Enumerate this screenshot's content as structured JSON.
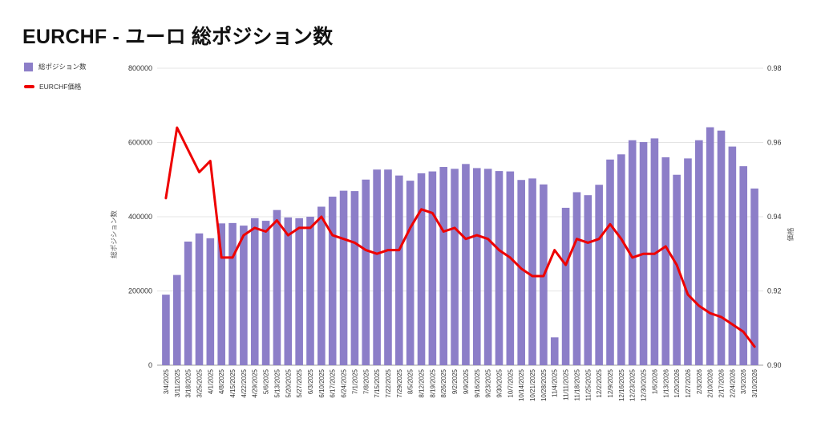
{
  "title": "EURCHF - ユーロ 総ポジション数",
  "legend": [
    {
      "label": "総ポジション数",
      "type": "bar",
      "color": "#8c7ec8"
    },
    {
      "label": "EURCHF価格",
      "type": "line",
      "color": "#ee0000"
    }
  ],
  "colors": {
    "bar": "#8c7ec8",
    "line": "#ee0000",
    "grid": "#e4e4e4",
    "axis_line": "#9e9e9e",
    "tick_text": "#333333",
    "axis_title_text": "#555555"
  },
  "chart_data": {
    "type": "bar",
    "subtype": "bar+line combo, dual axis",
    "title": "EURCHF - ユーロ 総ポジション数",
    "grid": true,
    "legend_position": "top-left",
    "categories": [
      "3/4/2025",
      "3/11/2025",
      "3/18/2025",
      "3/25/2025",
      "4/1/2025",
      "4/8/2025",
      "4/15/2025",
      "4/22/2025",
      "4/29/2025",
      "5/6/2025",
      "5/13/2025",
      "5/20/2025",
      "5/27/2025",
      "6/3/2025",
      "6/10/2025",
      "6/17/2025",
      "6/24/2025",
      "7/1/2025",
      "7/8/2025",
      "7/15/2025",
      "7/22/2025",
      "7/29/2025",
      "8/5/2025",
      "8/12/2025",
      "8/19/2025",
      "8/26/2025",
      "9/2/2025",
      "9/9/2025",
      "9/16/2025",
      "9/23/2025",
      "9/30/2025",
      "10/7/2025",
      "10/14/2025",
      "10/21/2025",
      "10/28/2025",
      "11/4/2025",
      "11/11/2025",
      "11/18/2025",
      "11/25/2025",
      "12/2/2025",
      "12/9/2025",
      "12/16/2025",
      "12/23/2025",
      "12/30/2025",
      "1/6/2026",
      "1/13/2026",
      "1/20/2026",
      "1/27/2026",
      "2/3/2026",
      "2/10/2026",
      "2/17/2026",
      "2/24/2026",
      "3/3/2026",
      "3/10/2026"
    ],
    "series": [
      {
        "name": "総ポジション数",
        "type": "bar",
        "axis": "left",
        "color": "#8c7ec8",
        "values": [
          190000,
          243000,
          333000,
          355000,
          342000,
          382000,
          383000,
          376000,
          396000,
          389000,
          418000,
          398000,
          396000,
          400000,
          427000,
          454000,
          470000,
          469000,
          500000,
          527000,
          527000,
          511000,
          497000,
          517000,
          522000,
          534000,
          529000,
          542000,
          531000,
          529000,
          523000,
          522000,
          499000,
          503000,
          487000,
          75000,
          424000,
          466000,
          458000,
          486000,
          554000,
          568000,
          606000,
          601000,
          611000,
          560000,
          513000,
          557000,
          606000,
          641000,
          632000,
          589000,
          536000,
          476000
        ]
      },
      {
        "name": "EURCHF価格",
        "type": "line",
        "axis": "right",
        "color": "#ee0000",
        "values": [
          0.945,
          0.964,
          0.958,
          0.952,
          0.955,
          0.929,
          0.929,
          0.935,
          0.937,
          0.936,
          0.939,
          0.935,
          0.937,
          0.937,
          0.94,
          0.935,
          0.934,
          0.933,
          0.931,
          0.93,
          0.931,
          0.931,
          0.937,
          0.942,
          0.941,
          0.936,
          0.937,
          0.934,
          0.935,
          0.934,
          0.931,
          0.929,
          0.926,
          0.924,
          0.924,
          0.931,
          0.927,
          0.934,
          0.933,
          0.934,
          0.938,
          0.934,
          0.929,
          0.93,
          0.93,
          0.932,
          0.927,
          0.919,
          0.916,
          0.914,
          0.913,
          0.911,
          0.909,
          0.905
        ]
      }
    ],
    "left_axis": {
      "title": "総ポジション数",
      "min": 0,
      "max": 800000,
      "ticks": [
        0,
        200000,
        400000,
        600000,
        800000
      ]
    },
    "right_axis": {
      "title": "価格",
      "min": 0.9,
      "max": 0.98,
      "ticks": [
        0.9,
        0.92,
        0.94,
        0.96,
        0.98
      ]
    }
  }
}
